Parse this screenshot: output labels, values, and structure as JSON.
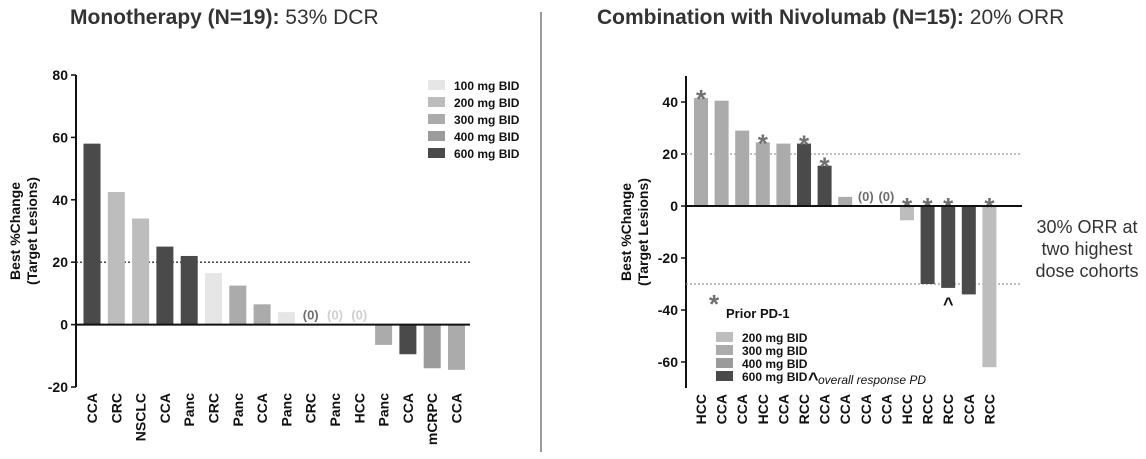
{
  "left_panel": {
    "title_bold": "Monotherapy (N=19):",
    "title_rest": " 53% DCR"
  },
  "right_panel": {
    "title_bold": "Combination with Nivolumab (N=15):",
    "title_rest": " 20% ORR",
    "side_note": [
      "30% ORR at",
      "two highest",
      "dose cohorts"
    ]
  },
  "colors": {
    "100 mg BID": "#e6e6e6",
    "200 mg BID": "#bdbdbd",
    "300 mg BID": "#ababab",
    "400 mg BID": "#9b9b9b",
    "600 mg BID": "#4a4a4a",
    "asterisk": "#707070",
    "zero_label": "#6e6e6e"
  },
  "chart_data": [
    {
      "type": "bar",
      "ylabel": [
        "Best %Change",
        "(Target Lesions)"
      ],
      "ylim": [
        -20,
        80
      ],
      "yticks": [
        -20,
        0,
        20,
        40,
        60,
        80
      ],
      "reference_line": 20,
      "legend": [
        "100 mg BID",
        "200 mg BID",
        "300 mg BID",
        "400 mg BID",
        "600 mg BID"
      ],
      "legend_position": "top-right",
      "bars": [
        {
          "category": "CCA",
          "value": 58,
          "dose": "600 mg BID"
        },
        {
          "category": "CRC",
          "value": 42.5,
          "dose": "200 mg BID"
        },
        {
          "category": "NSCLC",
          "value": 34,
          "dose": "200 mg BID"
        },
        {
          "category": "CCA",
          "value": 25,
          "dose": "600 mg BID"
        },
        {
          "category": "Panc",
          "value": 22,
          "dose": "600 mg BID"
        },
        {
          "category": "CRC",
          "value": 16.5,
          "dose": "100 mg BID"
        },
        {
          "category": "Panc",
          "value": 12.5,
          "dose": "300 mg BID"
        },
        {
          "category": "CCA",
          "value": 6.5,
          "dose": "300 mg BID"
        },
        {
          "category": "Panc",
          "value": 4,
          "dose": "100 mg BID"
        },
        {
          "category": "CRC",
          "value": 0,
          "dose": "600 mg BID",
          "label": "(0)"
        },
        {
          "category": "Panc",
          "value": 0,
          "dose": "100 mg BID",
          "label": "(0)"
        },
        {
          "category": "HCC",
          "value": 0,
          "dose": "100 mg BID",
          "label": "(0)"
        },
        {
          "category": "Panc",
          "value": -6.5,
          "dose": "300 mg BID"
        },
        {
          "category": "CCA",
          "value": -9.5,
          "dose": "600 mg BID"
        },
        {
          "category": "mCRPC",
          "value": -14,
          "dose": "400 mg BID"
        },
        {
          "category": "CCA",
          "value": -14.5,
          "dose": "300 mg BID"
        }
      ]
    },
    {
      "type": "bar",
      "ylabel": [
        "Best %Change",
        "(Target Lesions)"
      ],
      "ylim": [
        -70,
        50
      ],
      "yticks": [
        -60,
        -40,
        -20,
        0,
        20,
        40
      ],
      "reference_lines": [
        20,
        -30
      ],
      "legend": [
        "200 mg BID",
        "300 mg BID",
        "400 mg BID",
        "600 mg BID"
      ],
      "legend_position": "bottom-left",
      "prior_pd1_note": "Prior PD-1",
      "overall_pd_note": "overall response PD",
      "bars": [
        {
          "category": "HCC",
          "value": 41.5,
          "dose": "300 mg BID",
          "prior_pd1": true
        },
        {
          "category": "CCA",
          "value": 40.5,
          "dose": "300 mg BID"
        },
        {
          "category": "CCA",
          "value": 29,
          "dose": "300 mg BID"
        },
        {
          "category": "HCC",
          "value": 24.5,
          "dose": "300 mg BID",
          "prior_pd1": true
        },
        {
          "category": "CCA",
          "value": 24,
          "dose": "300 mg BID"
        },
        {
          "category": "RCC",
          "value": 24,
          "dose": "600 mg BID",
          "prior_pd1": true
        },
        {
          "category": "CCA",
          "value": 15.5,
          "dose": "600 mg BID",
          "prior_pd1": true
        },
        {
          "category": "CCA",
          "value": 3.5,
          "dose": "300 mg BID"
        },
        {
          "category": "CCA",
          "value": 0,
          "dose": "300 mg BID",
          "label": "(0)"
        },
        {
          "category": "CCA",
          "value": 0,
          "dose": "300 mg BID",
          "label": "(0)"
        },
        {
          "category": "HCC",
          "value": -5.5,
          "dose": "200 mg BID",
          "prior_pd1": true
        },
        {
          "category": "RCC",
          "value": -30,
          "dose": "600 mg BID",
          "prior_pd1": true
        },
        {
          "category": "RCC",
          "value": -31.5,
          "dose": "600 mg BID",
          "prior_pd1": true,
          "overall_pd": true
        },
        {
          "category": "CCA",
          "value": -34,
          "dose": "600 mg BID"
        },
        {
          "category": "RCC",
          "value": -62,
          "dose": "200 mg BID",
          "prior_pd1": true
        }
      ]
    }
  ]
}
